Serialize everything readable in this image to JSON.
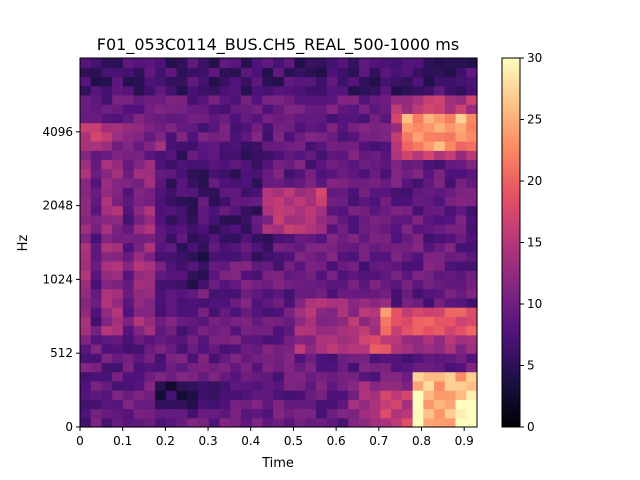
{
  "chart_data": {
    "type": "heatmap",
    "title": "F01_053C0114_BUS.CH5_REAL_500-1000 ms",
    "xlabel": "Time",
    "ylabel": "Hz",
    "x_ticks": [
      "0",
      "0.1",
      "0.2",
      "0.3",
      "0.4",
      "0.5",
      "0.6",
      "0.7",
      "0.8",
      "0.9"
    ],
    "y_ticks": [
      "0",
      "512",
      "1024",
      "2048",
      "4096"
    ],
    "colorbar_ticks": [
      "0",
      "5",
      "10",
      "15",
      "20",
      "25",
      "30"
    ],
    "x_range": [
      0,
      0.93
    ],
    "clim": [
      0,
      30
    ],
    "colormap": "magma",
    "grid": false,
    "n_time_bins": 37,
    "n_freq_bins": 40,
    "regions": [
      {
        "t": [
          0.0,
          0.93
        ],
        "band": "full",
        "level": 9
      },
      {
        "t": [
          0.0,
          0.08
        ],
        "band": "3300-4300 Hz",
        "level": 15
      },
      {
        "t": [
          0.0,
          0.2
        ],
        "band": "1000-2500 Hz",
        "level": 13
      },
      {
        "t": [
          0.2,
          0.3
        ],
        "band": "below 300 Hz",
        "level": 5
      },
      {
        "t": [
          0.42,
          0.58
        ],
        "band": "1500-2300 Hz",
        "level": 15
      },
      {
        "t": [
          0.55,
          0.7
        ],
        "band": "500-800 Hz",
        "level": 14
      },
      {
        "t": [
          0.7,
          0.93
        ],
        "band": "600-750 Hz",
        "level": 19
      },
      {
        "t": [
          0.75,
          0.93
        ],
        "band": "3300-5200 Hz",
        "level": 20
      },
      {
        "t": [
          0.79,
          0.93
        ],
        "band": "0-350 Hz",
        "level": 25
      },
      {
        "t": [
          0.88,
          0.93
        ],
        "band": "0-150 Hz",
        "level": 29
      }
    ]
  }
}
